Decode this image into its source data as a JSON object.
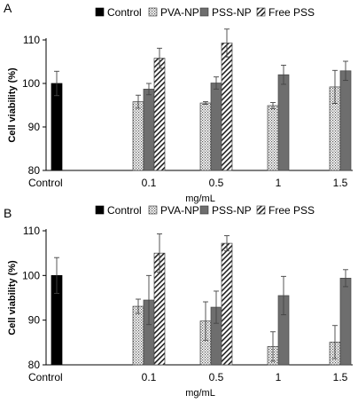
{
  "colors": {
    "control": "#000000",
    "pva_np": "#ffffff",
    "pss_np": "#6e6e6e",
    "free_pss": "#ffffff",
    "axis": "#000000",
    "errorbar": "#444444"
  },
  "chart_data": [
    {
      "panel": "A",
      "type": "bar",
      "ylabel": "Cell viability (%)",
      "xlabel": "mg/mL",
      "ylim": [
        80,
        110
      ],
      "yticks": [
        "80",
        "90",
        "100",
        "110"
      ],
      "categories": [
        "Control",
        "0.1",
        "0.5",
        "1",
        "1.5"
      ],
      "series": [
        {
          "name": "Control",
          "pattern": "solid",
          "values": [
            100,
            null,
            null,
            null,
            null
          ],
          "errors": [
            2.8,
            null,
            null,
            null,
            null
          ]
        },
        {
          "name": "PVA-NP",
          "pattern": "dots",
          "values": [
            null,
            95.8,
            95.5,
            94.9,
            99.2
          ],
          "errors": [
            null,
            1.5,
            0.3,
            0.7,
            3.8
          ]
        },
        {
          "name": "PSS-NP",
          "pattern": "gray",
          "values": [
            null,
            98.7,
            100.1,
            102.0,
            102.9
          ],
          "errors": [
            null,
            1.3,
            1.4,
            2.2,
            2.2
          ]
        },
        {
          "name": "Free PSS",
          "pattern": "hatch",
          "values": [
            null,
            105.8,
            109.3,
            null,
            null
          ],
          "errors": [
            null,
            2.3,
            3.2,
            null,
            null
          ]
        }
      ]
    },
    {
      "panel": "B",
      "type": "bar",
      "ylabel": "Cell viability (%)",
      "xlabel": "mg/mL",
      "ylim": [
        80,
        110
      ],
      "yticks": [
        "80",
        "90",
        "100",
        "110"
      ],
      "categories": [
        "Control",
        "0.1",
        "0.5",
        "1",
        "1.5"
      ],
      "series": [
        {
          "name": "Control",
          "pattern": "solid",
          "values": [
            100,
            null,
            null,
            null,
            null
          ],
          "errors": [
            4,
            null,
            null,
            null,
            null
          ]
        },
        {
          "name": "PVA-NP",
          "pattern": "dots",
          "values": [
            null,
            93.1,
            89.8,
            84.1,
            85.1
          ],
          "errors": [
            null,
            1.6,
            4.3,
            3.3,
            3.7
          ]
        },
        {
          "name": "PSS-NP",
          "pattern": "gray",
          "values": [
            null,
            94.5,
            92.9,
            95.5,
            99.4
          ],
          "errors": [
            null,
            5.5,
            3.6,
            4.3,
            1.9
          ]
        },
        {
          "name": "Free PSS",
          "pattern": "hatch",
          "values": [
            null,
            105.0,
            107.2,
            null,
            null
          ],
          "errors": [
            null,
            4.3,
            1.7,
            null,
            null
          ]
        }
      ]
    }
  ]
}
